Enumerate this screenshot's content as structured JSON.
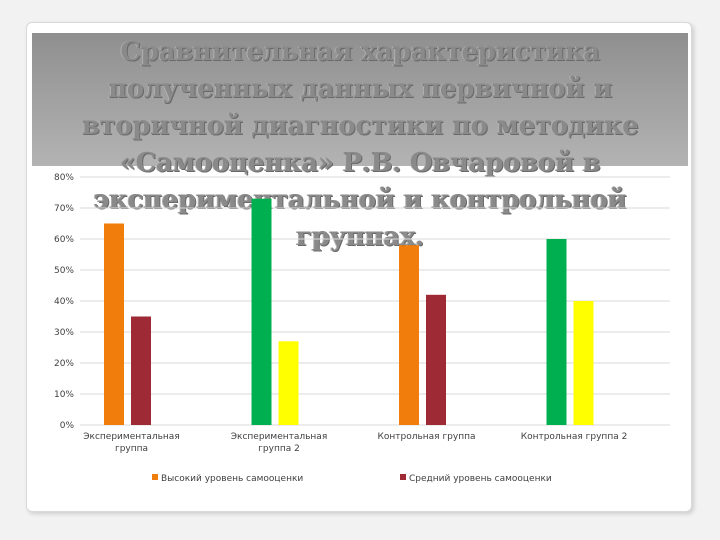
{
  "slide": {
    "title": "Сравнительная характеристика полученных данных первичной и вторичной диагностики по методике «Самооценка» Р.В. Овчаровой в экспериментальной и контрольной группах."
  },
  "chart_data": {
    "type": "bar",
    "categories": [
      [
        "Экспериментальная",
        "группа"
      ],
      [
        "Экспериментальная",
        "группа 2"
      ],
      [
        "Контрольная группа"
      ],
      [
        "Контрольная группа 2"
      ]
    ],
    "series": [
      {
        "name": "Высокий уровень самооценки",
        "values": [
          65,
          null,
          58,
          null
        ],
        "color": "#f07d0c"
      },
      {
        "name": "Средний уровень самооценки",
        "values": [
          35,
          null,
          42,
          null
        ],
        "color": "#9e2a36"
      },
      {
        "name": "",
        "values": [
          null,
          73,
          null,
          60
        ],
        "color": "#00b050"
      },
      {
        "name": "",
        "values": [
          null,
          27,
          null,
          40
        ],
        "color": "#ffff00"
      }
    ],
    "y_ticks": [
      "0%",
      "10%",
      "20%",
      "30%",
      "40%",
      "50%",
      "60%",
      "70%",
      "80%"
    ],
    "ylim": [
      0,
      80
    ],
    "grid": true,
    "legend": "bottom",
    "title": "",
    "xlabel": "",
    "ylabel": ""
  }
}
